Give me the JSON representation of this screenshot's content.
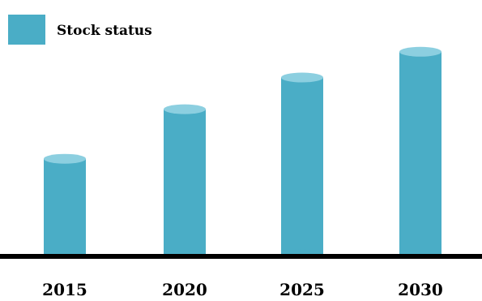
{
  "chart_data": {
    "type": "bar",
    "title": "",
    "xlabel": "",
    "ylabel": "",
    "categories": [
      "2015",
      "2020",
      "2025",
      "2030"
    ],
    "series": [
      {
        "name": "Stock status",
        "values": [
          4.8,
          7.3,
          8.9,
          10.2
        ]
      }
    ],
    "ylim": [
      0,
      10.6
    ],
    "grid": false,
    "legend": "top-left",
    "bar_style": "cylinder"
  },
  "colors": {
    "bar_body": "#4aadc6",
    "bar_top": "#8ccfe0",
    "baseline": "#000000",
    "background": "#ffffff"
  }
}
